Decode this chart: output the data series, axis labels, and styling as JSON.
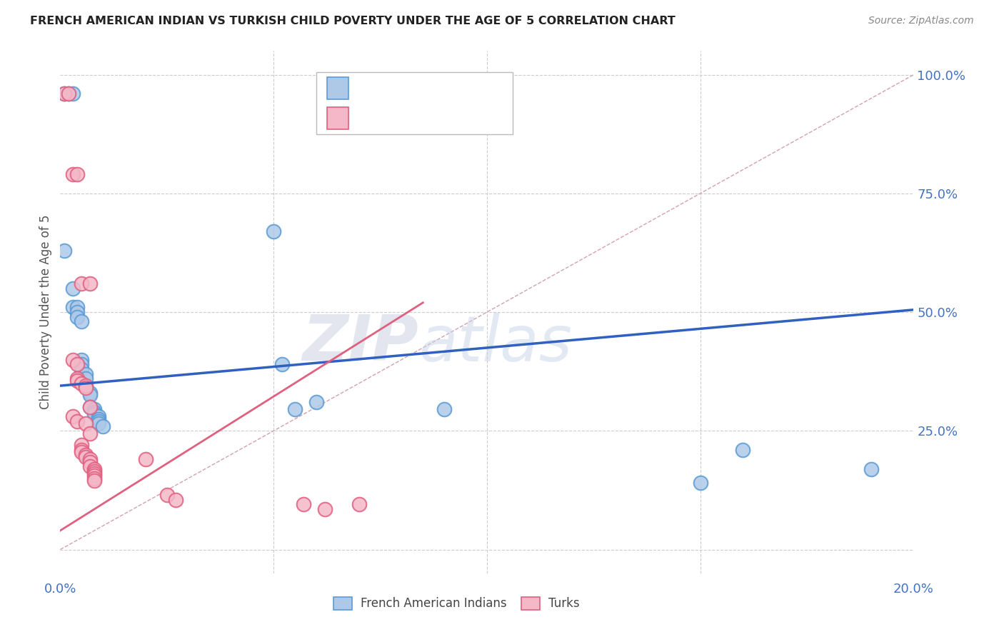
{
  "title": "FRENCH AMERICAN INDIAN VS TURKISH CHILD POVERTY UNDER THE AGE OF 5 CORRELATION CHART",
  "source": "Source: ZipAtlas.com",
  "ylabel": "Child Poverty Under the Age of 5",
  "yticks": [
    0.0,
    0.25,
    0.5,
    0.75,
    1.0
  ],
  "ytick_labels": [
    "",
    "25.0%",
    "50.0%",
    "75.0%",
    "100.0%"
  ],
  "xmin": 0.0,
  "xmax": 0.2,
  "ymin": -0.05,
  "ymax": 1.05,
  "legend_label1": "French American Indians",
  "legend_label2": "Turks",
  "blue_fill": "#aec9e8",
  "blue_edge": "#5b9bd5",
  "pink_fill": "#f4b8c8",
  "pink_edge": "#e06080",
  "blue_line_color": "#3060c0",
  "pink_line_color": "#e06080",
  "diag_line_color": "#cccccc",
  "background_color": "#ffffff",
  "watermark": "ZIPatlas",
  "blue_trend_x": [
    0.0,
    0.2
  ],
  "blue_trend_y": [
    0.345,
    0.505
  ],
  "pink_trend_x": [
    0.0,
    0.085
  ],
  "pink_trend_y": [
    0.04,
    0.52
  ],
  "scatter_blue": [
    [
      0.001,
      0.96
    ],
    [
      0.002,
      0.96
    ],
    [
      0.003,
      0.96
    ],
    [
      0.001,
      0.63
    ],
    [
      0.003,
      0.55
    ],
    [
      0.003,
      0.51
    ],
    [
      0.004,
      0.51
    ],
    [
      0.004,
      0.5
    ],
    [
      0.004,
      0.49
    ],
    [
      0.005,
      0.48
    ],
    [
      0.005,
      0.4
    ],
    [
      0.005,
      0.39
    ],
    [
      0.005,
      0.38
    ],
    [
      0.006,
      0.37
    ],
    [
      0.006,
      0.36
    ],
    [
      0.007,
      0.33
    ],
    [
      0.007,
      0.325
    ],
    [
      0.007,
      0.3
    ],
    [
      0.008,
      0.295
    ],
    [
      0.008,
      0.29
    ],
    [
      0.008,
      0.285
    ],
    [
      0.009,
      0.28
    ],
    [
      0.009,
      0.275
    ],
    [
      0.009,
      0.27
    ],
    [
      0.009,
      0.265
    ],
    [
      0.01,
      0.26
    ],
    [
      0.05,
      0.67
    ],
    [
      0.052,
      0.39
    ],
    [
      0.055,
      0.295
    ],
    [
      0.06,
      0.31
    ],
    [
      0.09,
      0.295
    ],
    [
      0.15,
      0.14
    ],
    [
      0.16,
      0.21
    ],
    [
      0.19,
      0.17
    ]
  ],
  "scatter_pink": [
    [
      0.001,
      0.96
    ],
    [
      0.002,
      0.96
    ],
    [
      0.003,
      0.79
    ],
    [
      0.004,
      0.79
    ],
    [
      0.005,
      0.56
    ],
    [
      0.007,
      0.56
    ],
    [
      0.003,
      0.4
    ],
    [
      0.004,
      0.39
    ],
    [
      0.004,
      0.36
    ],
    [
      0.004,
      0.355
    ],
    [
      0.005,
      0.35
    ],
    [
      0.006,
      0.345
    ],
    [
      0.006,
      0.34
    ],
    [
      0.007,
      0.3
    ],
    [
      0.003,
      0.28
    ],
    [
      0.004,
      0.27
    ],
    [
      0.006,
      0.265
    ],
    [
      0.007,
      0.245
    ],
    [
      0.005,
      0.22
    ],
    [
      0.005,
      0.21
    ],
    [
      0.005,
      0.205
    ],
    [
      0.006,
      0.2
    ],
    [
      0.006,
      0.195
    ],
    [
      0.007,
      0.19
    ],
    [
      0.007,
      0.185
    ],
    [
      0.007,
      0.175
    ],
    [
      0.008,
      0.17
    ],
    [
      0.008,
      0.165
    ],
    [
      0.008,
      0.16
    ],
    [
      0.008,
      0.155
    ],
    [
      0.008,
      0.15
    ],
    [
      0.008,
      0.145
    ],
    [
      0.02,
      0.19
    ],
    [
      0.025,
      0.115
    ],
    [
      0.027,
      0.105
    ],
    [
      0.057,
      0.095
    ],
    [
      0.062,
      0.085
    ],
    [
      0.07,
      0.095
    ]
  ]
}
